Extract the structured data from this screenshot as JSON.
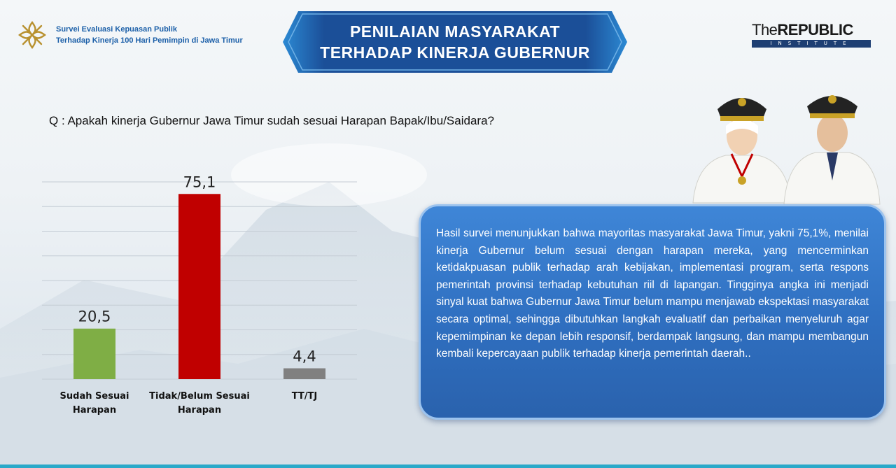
{
  "header": {
    "survey_line1": "Survei Evaluasi Kepuasan Publik",
    "survey_line2": "Terhadap Kinerja 100 Hari Pemimpin di Jawa Timur",
    "title_line1": "PENILAIAN MASYARAKAT",
    "title_line2": "TERHADAP KINERJA GUBERNUR",
    "brand_prefix": "The",
    "brand_main": "REPUBLIC",
    "brand_sub": "INSTITUTE",
    "colors": {
      "banner": "#1b4f98",
      "banner_edge": "#2c8ad4",
      "caption": "#1b5fa8",
      "logo_gold": "#b8912f"
    }
  },
  "question": "Q : Apakah kinerja Gubernur Jawa Timur sudah sesuai Harapan Bapak/Ibu/Saidara?",
  "chart_data": {
    "type": "bar",
    "categories": [
      [
        "Sudah Sesuai",
        "Harapan"
      ],
      [
        "Tidak/Belum Sesuai",
        "Harapan"
      ],
      [
        "TT/TJ"
      ]
    ],
    "values": [
      20.5,
      75.1,
      4.4
    ],
    "value_labels": [
      "20,5",
      "75,1",
      "4,4"
    ],
    "colors": [
      "#7fae45",
      "#c00000",
      "#808080"
    ],
    "ylim": [
      0,
      80
    ],
    "grid": true,
    "title": "",
    "xlabel": "",
    "ylabel": ""
  },
  "narrative": "Hasil survei menunjukkan bahwa mayoritas masyarakat Jawa Timur, yakni 75,1%, menilai kinerja Gubernur belum sesuai dengan harapan mereka, yang mencerminkan ketidakpuasan publik terhadap arah kebijakan, implementasi program, serta respons pemerintah provinsi terhadap kebutuhan riil di lapangan. Tingginya angka ini menjadi sinyal kuat bahwa Gubernur Jawa Timur belum mampu menjawab ekspektasi masyarakat secara optimal, sehingga dibutuhkan langkah evaluatif dan perbaikan menyeluruh agar kepemimpinan ke depan lebih responsif, berdampak langsung, dan mampu membangun kembali kepercayaan publik terhadap kinerja pemerintah daerah.."
}
